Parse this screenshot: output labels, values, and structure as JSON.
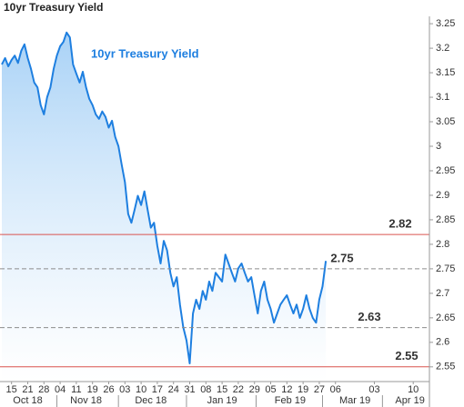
{
  "chart_data": {
    "type": "area-line",
    "title": "10yr Treasury Yield",
    "annotation": "10yr Treasury Yield",
    "categories": [
      null,
      null,
      null,
      "15",
      null,
      null,
      null,
      null,
      "21",
      null,
      null,
      null,
      null,
      "28",
      null,
      null,
      null,
      null,
      "04",
      null,
      null,
      null,
      null,
      "11",
      null,
      null,
      null,
      null,
      "19",
      null,
      null,
      null,
      null,
      "26",
      null,
      null,
      null,
      null,
      "03",
      null,
      null,
      null,
      null,
      "10",
      null,
      null,
      null,
      null,
      "17",
      null,
      null,
      null,
      null,
      "24",
      null,
      null,
      null,
      null,
      "31",
      null,
      null,
      null,
      null,
      "08",
      null,
      null,
      null,
      null,
      "15",
      null,
      null,
      null,
      null,
      "22",
      null,
      null,
      null,
      null,
      "29",
      null,
      null,
      null,
      null,
      "05",
      null,
      null,
      null,
      null,
      "12",
      null,
      null,
      null,
      null,
      "19",
      null,
      null,
      null,
      null,
      "27",
      null,
      null,
      null,
      null,
      "06",
      null,
      null,
      null,
      null,
      null,
      null,
      null,
      null,
      null,
      null,
      null,
      "03",
      null,
      null,
      null,
      null,
      null,
      null,
      null,
      null,
      null,
      null,
      null,
      "10",
      null,
      null,
      null,
      null,
      null
    ],
    "month_labels": [
      null,
      null,
      null,
      null,
      null,
      null,
      null,
      null,
      "Oct 18",
      null,
      null,
      null,
      null,
      null,
      null,
      null,
      null,
      null,
      null,
      null,
      null,
      null,
      null,
      null,
      null,
      null,
      "Nov 18",
      null,
      null,
      null,
      null,
      null,
      null,
      null,
      null,
      null,
      null,
      null,
      null,
      null,
      null,
      null,
      null,
      null,
      null,
      null,
      "Dec 18",
      null,
      null,
      null,
      null,
      null,
      null,
      null,
      null,
      null,
      null,
      null,
      null,
      null,
      null,
      null,
      null,
      null,
      null,
      null,
      null,
      null,
      "Jan 19",
      null,
      null,
      null,
      null,
      null,
      null,
      null,
      null,
      null,
      null,
      null,
      null,
      null,
      null,
      null,
      null,
      null,
      null,
      null,
      null,
      "Feb 19",
      null,
      null,
      null,
      null,
      null,
      null,
      null,
      null,
      null,
      null,
      null,
      null,
      null,
      null,
      null,
      null,
      null,
      null,
      null,
      "Mar 19",
      null,
      null,
      null,
      null,
      null,
      null,
      null,
      null,
      null,
      null,
      null,
      null,
      null,
      null,
      null,
      null,
      "Apr 19",
      null,
      null,
      null,
      null,
      null,
      null
    ],
    "series": [
      {
        "name": "10yr Treasury Yield",
        "color": "#1e7fe0",
        "values": [
          3.167,
          3.18,
          3.163,
          3.176,
          3.185,
          3.17,
          3.195,
          3.208,
          3.18,
          3.158,
          3.13,
          3.12,
          3.084,
          3.065,
          3.1,
          3.12,
          3.158,
          3.185,
          3.204,
          3.213,
          3.232,
          3.222,
          3.167,
          3.148,
          3.13,
          3.152,
          3.12,
          3.097,
          3.084,
          3.065,
          3.056,
          3.071,
          3.06,
          3.038,
          3.052,
          3.019,
          3.0,
          2.963,
          2.927,
          2.862,
          2.844,
          2.871,
          2.899,
          2.88,
          2.908,
          2.871,
          2.834,
          2.844,
          2.797,
          2.761,
          2.807,
          2.788,
          2.742,
          2.714,
          2.733,
          2.677,
          2.631,
          2.604,
          2.557,
          2.659,
          2.687,
          2.668,
          2.705,
          2.687,
          2.724,
          2.705,
          2.742,
          2.733,
          2.724,
          2.779,
          2.761,
          2.742,
          2.724,
          2.751,
          2.761,
          2.742,
          2.724,
          2.733,
          2.696,
          2.659,
          2.705,
          2.724,
          2.687,
          2.668,
          2.64,
          2.659,
          2.677,
          2.687,
          2.696,
          2.677,
          2.659,
          2.677,
          2.65,
          2.668,
          2.696,
          2.668,
          2.65,
          2.64,
          2.687,
          2.714,
          2.766,
          null,
          null,
          null,
          null,
          null,
          null,
          null,
          null,
          null,
          null,
          null,
          null,
          null,
          null,
          null,
          null,
          null,
          null,
          null,
          null,
          null,
          null,
          null,
          null,
          null,
          null,
          null,
          null,
          null,
          null,
          null,
          null
        ]
      }
    ],
    "ylim": [
      2.52,
      3.265
    ],
    "yticks": [
      2.55,
      2.6,
      2.65,
      2.7,
      2.75,
      2.8,
      2.85,
      2.9,
      2.95,
      3,
      3.05,
      3.1,
      3.15,
      3.2,
      3.25
    ],
    "reference_lines": [
      {
        "value": 2.82,
        "color": "#d9534f",
        "style": "solid"
      },
      {
        "value": 2.75,
        "color": "#8c8c8c",
        "style": "dashed"
      },
      {
        "value": 2.63,
        "color": "#8c8c8c",
        "style": "dashed"
      },
      {
        "value": 2.55,
        "color": "#d9534f",
        "style": "solid"
      }
    ],
    "grid": false
  }
}
